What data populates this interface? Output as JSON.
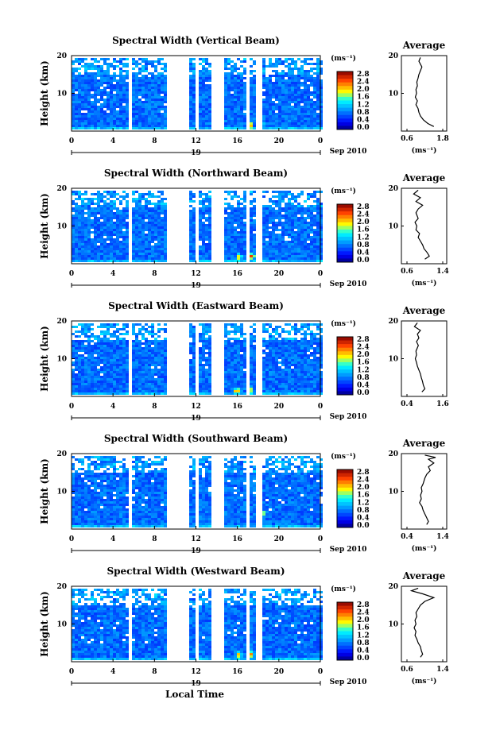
{
  "chart_data": [
    {
      "type": "heatmap",
      "title": "Spectral Width (Vertical Beam)",
      "ylabel": "Height (km)",
      "xticks": [
        "0",
        "4",
        "8",
        "12",
        "16",
        "20",
        "0"
      ],
      "xlim": [
        0,
        24
      ],
      "yticks": [
        "20",
        "10"
      ],
      "ylim": [
        0,
        20
      ],
      "date_day": "19",
      "date_month": "Sep 2010",
      "colorbar": {
        "unit": "(ms⁻¹)",
        "ticks": [
          "2.8",
          "2.4",
          "2.0",
          "1.6",
          "1.2",
          "0.8",
          "0.4",
          "0.0"
        ]
      },
      "gaps_hours": [
        [
          5.5,
          5.8
        ],
        [
          9.2,
          11.2
        ],
        [
          11.8,
          12.1
        ],
        [
          13.4,
          14.5
        ],
        [
          16.7,
          17.0
        ],
        [
          17.7,
          18.1
        ]
      ],
      "hotspots": [
        [
          17.1,
          2.0
        ],
        [
          18.0,
          2.2
        ]
      ],
      "average": {
        "title": "Average",
        "xticks": [
          "0.6",
          "1.8"
        ],
        "xlim": [
          0.6,
          1.8
        ],
        "yticks": [
          "20",
          "10"
        ],
        "xlabel": "(ms⁻¹)",
        "profile": [
          [
            19.5,
            1.05
          ],
          [
            18.5,
            1.0
          ],
          [
            17,
            1.1
          ],
          [
            16,
            1.05
          ],
          [
            15,
            1.0
          ],
          [
            14,
            0.97
          ],
          [
            13,
            0.93
          ],
          [
            12,
            0.95
          ],
          [
            11,
            0.9
          ],
          [
            10,
            0.92
          ],
          [
            9,
            0.88
          ],
          [
            8,
            0.95
          ],
          [
            7,
            0.9
          ],
          [
            6,
            0.97
          ],
          [
            5,
            1.0
          ],
          [
            4,
            1.05
          ],
          [
            3,
            1.15
          ],
          [
            2,
            1.3
          ],
          [
            1.2,
            1.5
          ]
        ]
      }
    },
    {
      "type": "heatmap",
      "title": "Spectral Width (Northward Beam)",
      "ylabel": "Height (km)",
      "xticks": [
        "0",
        "4",
        "8",
        "12",
        "16",
        "20",
        "0"
      ],
      "xlim": [
        0,
        24
      ],
      "yticks": [
        "20",
        "10"
      ],
      "ylim": [
        0,
        20
      ],
      "date_day": "19",
      "date_month": "Sep 2010",
      "colorbar": {
        "unit": "(ms⁻¹)",
        "ticks": [
          "2.8",
          "2.4",
          "2.0",
          "1.6",
          "1.2",
          "0.8",
          "0.4",
          "0.0"
        ]
      },
      "gaps_hours": [
        [
          5.5,
          5.8
        ],
        [
          9.2,
          11.2
        ],
        [
          11.8,
          12.1
        ],
        [
          13.4,
          14.5
        ],
        [
          16.7,
          17.0
        ],
        [
          17.7,
          18.1
        ]
      ],
      "hotspots": [
        [
          16.0,
          2.0
        ],
        [
          17.2,
          2.3
        ],
        [
          18.0,
          2.0
        ]
      ],
      "average": {
        "title": "Average",
        "xticks": [
          "0.6",
          "1.4"
        ],
        "xlim": [
          0.6,
          1.4
        ],
        "yticks": [
          "20",
          "10"
        ],
        "xlabel": "(ms⁻¹)",
        "profile": [
          [
            19.5,
            0.85
          ],
          [
            18.5,
            0.75
          ],
          [
            17.5,
            0.9
          ],
          [
            16.5,
            0.8
          ],
          [
            15.5,
            0.95
          ],
          [
            14.5,
            0.85
          ],
          [
            13.5,
            0.8
          ],
          [
            12,
            0.85
          ],
          [
            11,
            0.78
          ],
          [
            10,
            0.82
          ],
          [
            9,
            0.8
          ],
          [
            8,
            0.88
          ],
          [
            7,
            0.85
          ],
          [
            6,
            0.9
          ],
          [
            5,
            0.95
          ],
          [
            4,
            0.98
          ],
          [
            3,
            1.05
          ],
          [
            2,
            1.1
          ],
          [
            1.2,
            1.0
          ]
        ]
      }
    },
    {
      "type": "heatmap",
      "title": "Spectral Width (Eastward Beam)",
      "ylabel": "Height (km)",
      "xticks": [
        "0",
        "4",
        "8",
        "12",
        "16",
        "20",
        "0"
      ],
      "xlim": [
        0,
        24
      ],
      "yticks": [
        "20",
        "10"
      ],
      "ylim": [
        0,
        20
      ],
      "date_day": "19",
      "date_month": "Sep 2010",
      "colorbar": {
        "unit": "(ms⁻¹)",
        "ticks": [
          "2.8",
          "2.4",
          "2.0",
          "1.6",
          "1.2",
          "0.8",
          "0.4",
          "0.0"
        ]
      },
      "gaps_hours": [
        [
          5.5,
          5.8
        ],
        [
          9.2,
          11.2
        ],
        [
          11.8,
          12.1
        ],
        [
          13.4,
          14.5
        ],
        [
          16.7,
          17.0
        ],
        [
          17.7,
          18.1
        ]
      ],
      "hotspots": [
        [
          15.8,
          1.8
        ],
        [
          17.1,
          2.0
        ],
        [
          18.0,
          2.5
        ]
      ],
      "average": {
        "title": "Average",
        "xticks": [
          "0.4",
          "1.6"
        ],
        "xlim": [
          0.4,
          1.6
        ],
        "yticks": [
          "20",
          "10"
        ],
        "xlabel": "",
        "profile": [
          [
            19.5,
            0.75
          ],
          [
            18.5,
            0.65
          ],
          [
            17.5,
            0.85
          ],
          [
            16.5,
            0.75
          ],
          [
            15.5,
            0.8
          ],
          [
            14.5,
            0.72
          ],
          [
            13.5,
            0.78
          ],
          [
            12,
            0.7
          ],
          [
            11,
            0.72
          ],
          [
            10,
            0.68
          ],
          [
            9,
            0.72
          ],
          [
            8,
            0.75
          ],
          [
            7,
            0.8
          ],
          [
            6,
            0.85
          ],
          [
            5,
            0.88
          ],
          [
            4,
            0.92
          ],
          [
            3,
            0.95
          ],
          [
            2,
            1.0
          ],
          [
            1.2,
            0.9
          ]
        ]
      }
    },
    {
      "type": "heatmap",
      "title": "Spectral Width (Southward Beam)",
      "ylabel": "Height (km)",
      "xticks": [
        "0",
        "4",
        "8",
        "12",
        "16",
        "20",
        "0"
      ],
      "xlim": [
        0,
        24
      ],
      "yticks": [
        "20",
        "10"
      ],
      "ylim": [
        0,
        20
      ],
      "date_day": "19",
      "date_month": "Sep 2010",
      "colorbar": {
        "unit": "(ms⁻¹)",
        "ticks": [
          "2.8",
          "2.4",
          "2.0",
          "1.6",
          "1.2",
          "0.8",
          "0.4",
          "0.0"
        ]
      },
      "gaps_hours": [
        [
          5.5,
          5.8
        ],
        [
          9.2,
          11.2
        ],
        [
          11.8,
          12.1
        ],
        [
          13.4,
          14.5
        ],
        [
          16.7,
          17.0
        ],
        [
          17.7,
          18.1
        ]
      ],
      "hotspots": [
        [
          18.0,
          2.5
        ],
        [
          18.2,
          4.5
        ]
      ],
      "average": {
        "title": "Average",
        "xticks": [
          "0.4",
          "1.4"
        ],
        "xlim": [
          0.4,
          1.4
        ],
        "yticks": [
          "20",
          "10"
        ],
        "xlabel": "(ms⁻¹)",
        "profile": [
          [
            19.6,
            0.9
          ],
          [
            19,
            1.2
          ],
          [
            18.5,
            1.0
          ],
          [
            17.5,
            1.15
          ],
          [
            16.5,
            1.0
          ],
          [
            15.5,
            1.05
          ],
          [
            14.5,
            0.95
          ],
          [
            13.5,
            0.9
          ],
          [
            12,
            0.85
          ],
          [
            11,
            0.8
          ],
          [
            10,
            0.82
          ],
          [
            9,
            0.78
          ],
          [
            8,
            0.8
          ],
          [
            7,
            0.75
          ],
          [
            6,
            0.82
          ],
          [
            5,
            0.85
          ],
          [
            4,
            0.9
          ],
          [
            3,
            0.95
          ],
          [
            2,
            1.0
          ],
          [
            1.2,
            0.95
          ]
        ]
      }
    },
    {
      "type": "heatmap",
      "title": "Spectral Width (Westward Beam)",
      "ylabel": "Height (km)",
      "xticks": [
        "0",
        "4",
        "8",
        "12",
        "16",
        "20",
        "0"
      ],
      "xlim": [
        0,
        24
      ],
      "yticks": [
        "20",
        "10"
      ],
      "ylim": [
        0,
        20
      ],
      "date_day": "19",
      "date_month": "Sep 2010",
      "colorbar": {
        "unit": "(ms⁻¹)",
        "ticks": [
          "2.8",
          "2.4",
          "2.0",
          "1.6",
          "1.2",
          "0.8",
          "0.4",
          "0.0"
        ]
      },
      "gaps_hours": [
        [
          5.5,
          5.8
        ],
        [
          9.2,
          11.2
        ],
        [
          11.8,
          12.1
        ],
        [
          13.4,
          14.5
        ],
        [
          16.7,
          17.0
        ],
        [
          17.7,
          18.1
        ]
      ],
      "hotspots": [
        [
          16.0,
          2.0
        ],
        [
          17.1,
          2.2
        ],
        [
          18.0,
          3.5
        ]
      ],
      "average": {
        "title": "Average",
        "xticks": [
          "0.6",
          "1.4"
        ],
        "xlim": [
          0.6,
          1.4
        ],
        "yticks": [
          "20",
          "10"
        ],
        "xlabel": "(ms⁻¹)",
        "profile": [
          [
            19.5,
            0.85
          ],
          [
            18.8,
            0.7
          ],
          [
            18,
            0.95
          ],
          [
            17,
            1.2
          ],
          [
            16,
            1.0
          ],
          [
            15,
            0.9
          ],
          [
            14,
            0.85
          ],
          [
            13,
            0.8
          ],
          [
            12,
            0.82
          ],
          [
            11,
            0.78
          ],
          [
            10,
            0.8
          ],
          [
            9,
            0.76
          ],
          [
            8,
            0.8
          ],
          [
            7,
            0.78
          ],
          [
            6,
            0.82
          ],
          [
            5,
            0.85
          ],
          [
            4,
            0.9
          ],
          [
            3,
            0.92
          ],
          [
            2,
            0.95
          ],
          [
            1.2,
            0.9
          ]
        ]
      }
    }
  ],
  "footer": {
    "xlabel": "Local Time"
  }
}
